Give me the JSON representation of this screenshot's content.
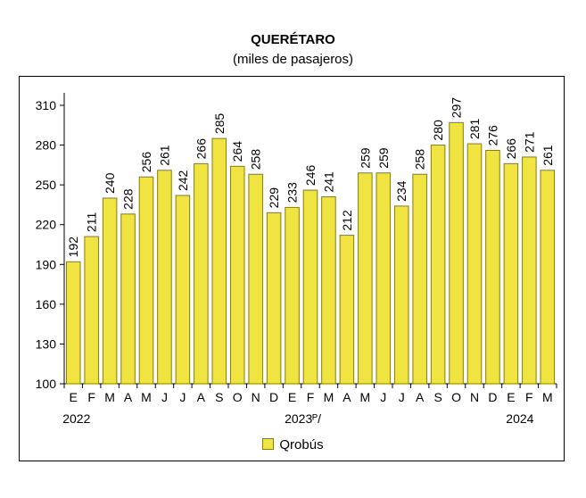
{
  "chart_data": {
    "type": "bar",
    "title": "QUERÉTARO",
    "subtitle": "(miles de pasajeros)",
    "categories": [
      "E",
      "F",
      "M",
      "A",
      "M",
      "J",
      "J",
      "A",
      "S",
      "O",
      "N",
      "D",
      "E",
      "F",
      "M",
      "A",
      "M",
      "J",
      "J",
      "A",
      "S",
      "O",
      "N",
      "D",
      "E",
      "F",
      "M"
    ],
    "year_labels": [
      {
        "index": 0,
        "label": "2022"
      },
      {
        "index": 12,
        "label": "2023ᴾ/"
      },
      {
        "index": 24,
        "label": "2024"
      }
    ],
    "series": [
      {
        "name": "Qrobús",
        "values": [
          192,
          211,
          240,
          228,
          256,
          261,
          242,
          266,
          285,
          264,
          258,
          229,
          233,
          246,
          241,
          212,
          259,
          259,
          234,
          258,
          280,
          297,
          281,
          276,
          266,
          271,
          261
        ]
      }
    ],
    "ylim": [
      100,
      310
    ],
    "yticks": [
      100,
      130,
      160,
      190,
      220,
      250,
      280,
      310
    ],
    "legend_position": "bottom",
    "bar_color": "#f0e442",
    "bar_edge_color": "#8a7d00"
  }
}
